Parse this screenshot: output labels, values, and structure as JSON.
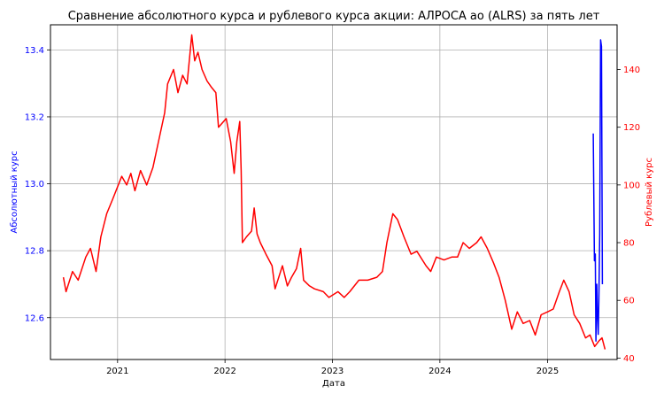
{
  "chart_data": {
    "type": "line",
    "title": "Сравнение абсолютного курса и рублевого курса акции: АЛРОСА ао (ALRS) за пять лет",
    "xlabel": "Дата",
    "ylabel_left": "Абсолютный курс",
    "ylabel_right": "Рублевый курс",
    "xlim": [
      "2020-05-18",
      "2025-08-25"
    ],
    "ylim_left": [
      12.475,
      13.475
    ],
    "ylim_right": [
      39.5,
      155.5
    ],
    "x_ticks": [
      "2021-01-01",
      "2022-01-01",
      "2023-01-01",
      "2024-01-01",
      "2025-01-01"
    ],
    "x_tick_labels": [
      "2021",
      "2022",
      "2023",
      "2024",
      "2025"
    ],
    "y_ticks_left": [
      12.6,
      12.8,
      13.0,
      13.2,
      13.4
    ],
    "y_tick_labels_left": [
      "12.6",
      "12.8",
      "13.0",
      "13.2",
      "13.4"
    ],
    "y_ticks_right": [
      40,
      60,
      80,
      100,
      120,
      140
    ],
    "y_tick_labels_right": [
      "40",
      "60",
      "80",
      "100",
      "120",
      "140"
    ],
    "grid": true,
    "colors": {
      "absolute": "#0000ff",
      "ruble": "#ff0000",
      "left_axis": "#0000ff",
      "right_axis": "#ff0000"
    },
    "series": [
      {
        "axis": "right",
        "color": "#ff0000",
        "points": [
          [
            "2020-07-01",
            68
          ],
          [
            "2020-07-10",
            63
          ],
          [
            "2020-08-01",
            70
          ],
          [
            "2020-08-20",
            67
          ],
          [
            "2020-09-15",
            75
          ],
          [
            "2020-10-01",
            78
          ],
          [
            "2020-10-20",
            70
          ],
          [
            "2020-11-05",
            82
          ],
          [
            "2020-11-25",
            90
          ],
          [
            "2020-12-15",
            95
          ],
          [
            "2021-01-15",
            103
          ],
          [
            "2021-02-01",
            100
          ],
          [
            "2021-02-15",
            104
          ],
          [
            "2021-03-01",
            98
          ],
          [
            "2021-03-20",
            105
          ],
          [
            "2021-04-10",
            100
          ],
          [
            "2021-05-01",
            106
          ],
          [
            "2021-05-20",
            115
          ],
          [
            "2021-06-10",
            125
          ],
          [
            "2021-06-20",
            135
          ],
          [
            "2021-07-10",
            140
          ],
          [
            "2021-07-25",
            132
          ],
          [
            "2021-08-10",
            138
          ],
          [
            "2021-08-25",
            135
          ],
          [
            "2021-09-10",
            152
          ],
          [
            "2021-09-20",
            143
          ],
          [
            "2021-10-01",
            146
          ],
          [
            "2021-10-15",
            140
          ],
          [
            "2021-11-01",
            136
          ],
          [
            "2021-11-15",
            134
          ],
          [
            "2021-12-01",
            132
          ],
          [
            "2021-12-10",
            120
          ],
          [
            "2022-01-05",
            123
          ],
          [
            "2022-01-20",
            115
          ],
          [
            "2022-02-01",
            104
          ],
          [
            "2022-02-10",
            115
          ],
          [
            "2022-02-20",
            122
          ],
          [
            "2022-02-25",
            105
          ],
          [
            "2022-03-01",
            80
          ],
          [
            "2022-03-15",
            82
          ],
          [
            "2022-04-01",
            84
          ],
          [
            "2022-04-10",
            92
          ],
          [
            "2022-04-20",
            83
          ],
          [
            "2022-05-01",
            80
          ],
          [
            "2022-05-20",
            76
          ],
          [
            "2022-06-10",
            72
          ],
          [
            "2022-06-20",
            64
          ],
          [
            "2022-07-15",
            72
          ],
          [
            "2022-08-01",
            65
          ],
          [
            "2022-08-15",
            68
          ],
          [
            "2022-09-01",
            71
          ],
          [
            "2022-09-15",
            78
          ],
          [
            "2022-09-25",
            67
          ],
          [
            "2022-10-15",
            65
          ],
          [
            "2022-11-01",
            64
          ],
          [
            "2022-12-01",
            63
          ],
          [
            "2022-12-20",
            61
          ],
          [
            "2023-01-20",
            63
          ],
          [
            "2023-02-10",
            61
          ],
          [
            "2023-03-01",
            63
          ],
          [
            "2023-04-01",
            67
          ],
          [
            "2023-05-01",
            67
          ],
          [
            "2023-06-01",
            68
          ],
          [
            "2023-06-20",
            70
          ],
          [
            "2023-07-05",
            80
          ],
          [
            "2023-07-25",
            90
          ],
          [
            "2023-08-10",
            88
          ],
          [
            "2023-09-01",
            82
          ],
          [
            "2023-09-25",
            76
          ],
          [
            "2023-10-15",
            77
          ],
          [
            "2023-11-15",
            72
          ],
          [
            "2023-12-01",
            70
          ],
          [
            "2023-12-20",
            75
          ],
          [
            "2024-01-15",
            74
          ],
          [
            "2024-02-10",
            75
          ],
          [
            "2024-03-01",
            75
          ],
          [
            "2024-03-20",
            80
          ],
          [
            "2024-04-10",
            78
          ],
          [
            "2024-05-05",
            80
          ],
          [
            "2024-05-20",
            82
          ],
          [
            "2024-06-10",
            78
          ],
          [
            "2024-07-01",
            73
          ],
          [
            "2024-07-20",
            68
          ],
          [
            "2024-08-10",
            60
          ],
          [
            "2024-09-01",
            50
          ],
          [
            "2024-09-20",
            56
          ],
          [
            "2024-10-10",
            52
          ],
          [
            "2024-11-01",
            53
          ],
          [
            "2024-11-20",
            48
          ],
          [
            "2024-12-10",
            55
          ],
          [
            "2025-01-01",
            56
          ],
          [
            "2025-01-20",
            57
          ],
          [
            "2025-02-10",
            63
          ],
          [
            "2025-02-25",
            67
          ],
          [
            "2025-03-15",
            63
          ],
          [
            "2025-04-01",
            55
          ],
          [
            "2025-04-20",
            52
          ],
          [
            "2025-05-10",
            47
          ],
          [
            "2025-05-25",
            48
          ],
          [
            "2025-06-10",
            44
          ],
          [
            "2025-06-25",
            46
          ],
          [
            "2025-07-05",
            47
          ],
          [
            "2025-07-15",
            43
          ]
        ]
      },
      {
        "axis": "left",
        "color": "#0000ff",
        "points": [
          [
            "2025-06-05",
            13.15
          ],
          [
            "2025-06-09",
            12.77
          ],
          [
            "2025-06-12",
            12.79
          ],
          [
            "2025-06-14",
            12.53
          ],
          [
            "2025-06-17",
            12.7
          ],
          [
            "2025-06-19",
            12.62
          ],
          [
            "2025-06-22",
            12.55
          ],
          [
            "2025-06-24",
            12.65
          ],
          [
            "2025-06-27",
            12.85
          ],
          [
            "2025-06-30",
            13.43
          ],
          [
            "2025-07-03",
            13.41
          ],
          [
            "2025-07-06",
            12.7
          ]
        ]
      }
    ]
  }
}
